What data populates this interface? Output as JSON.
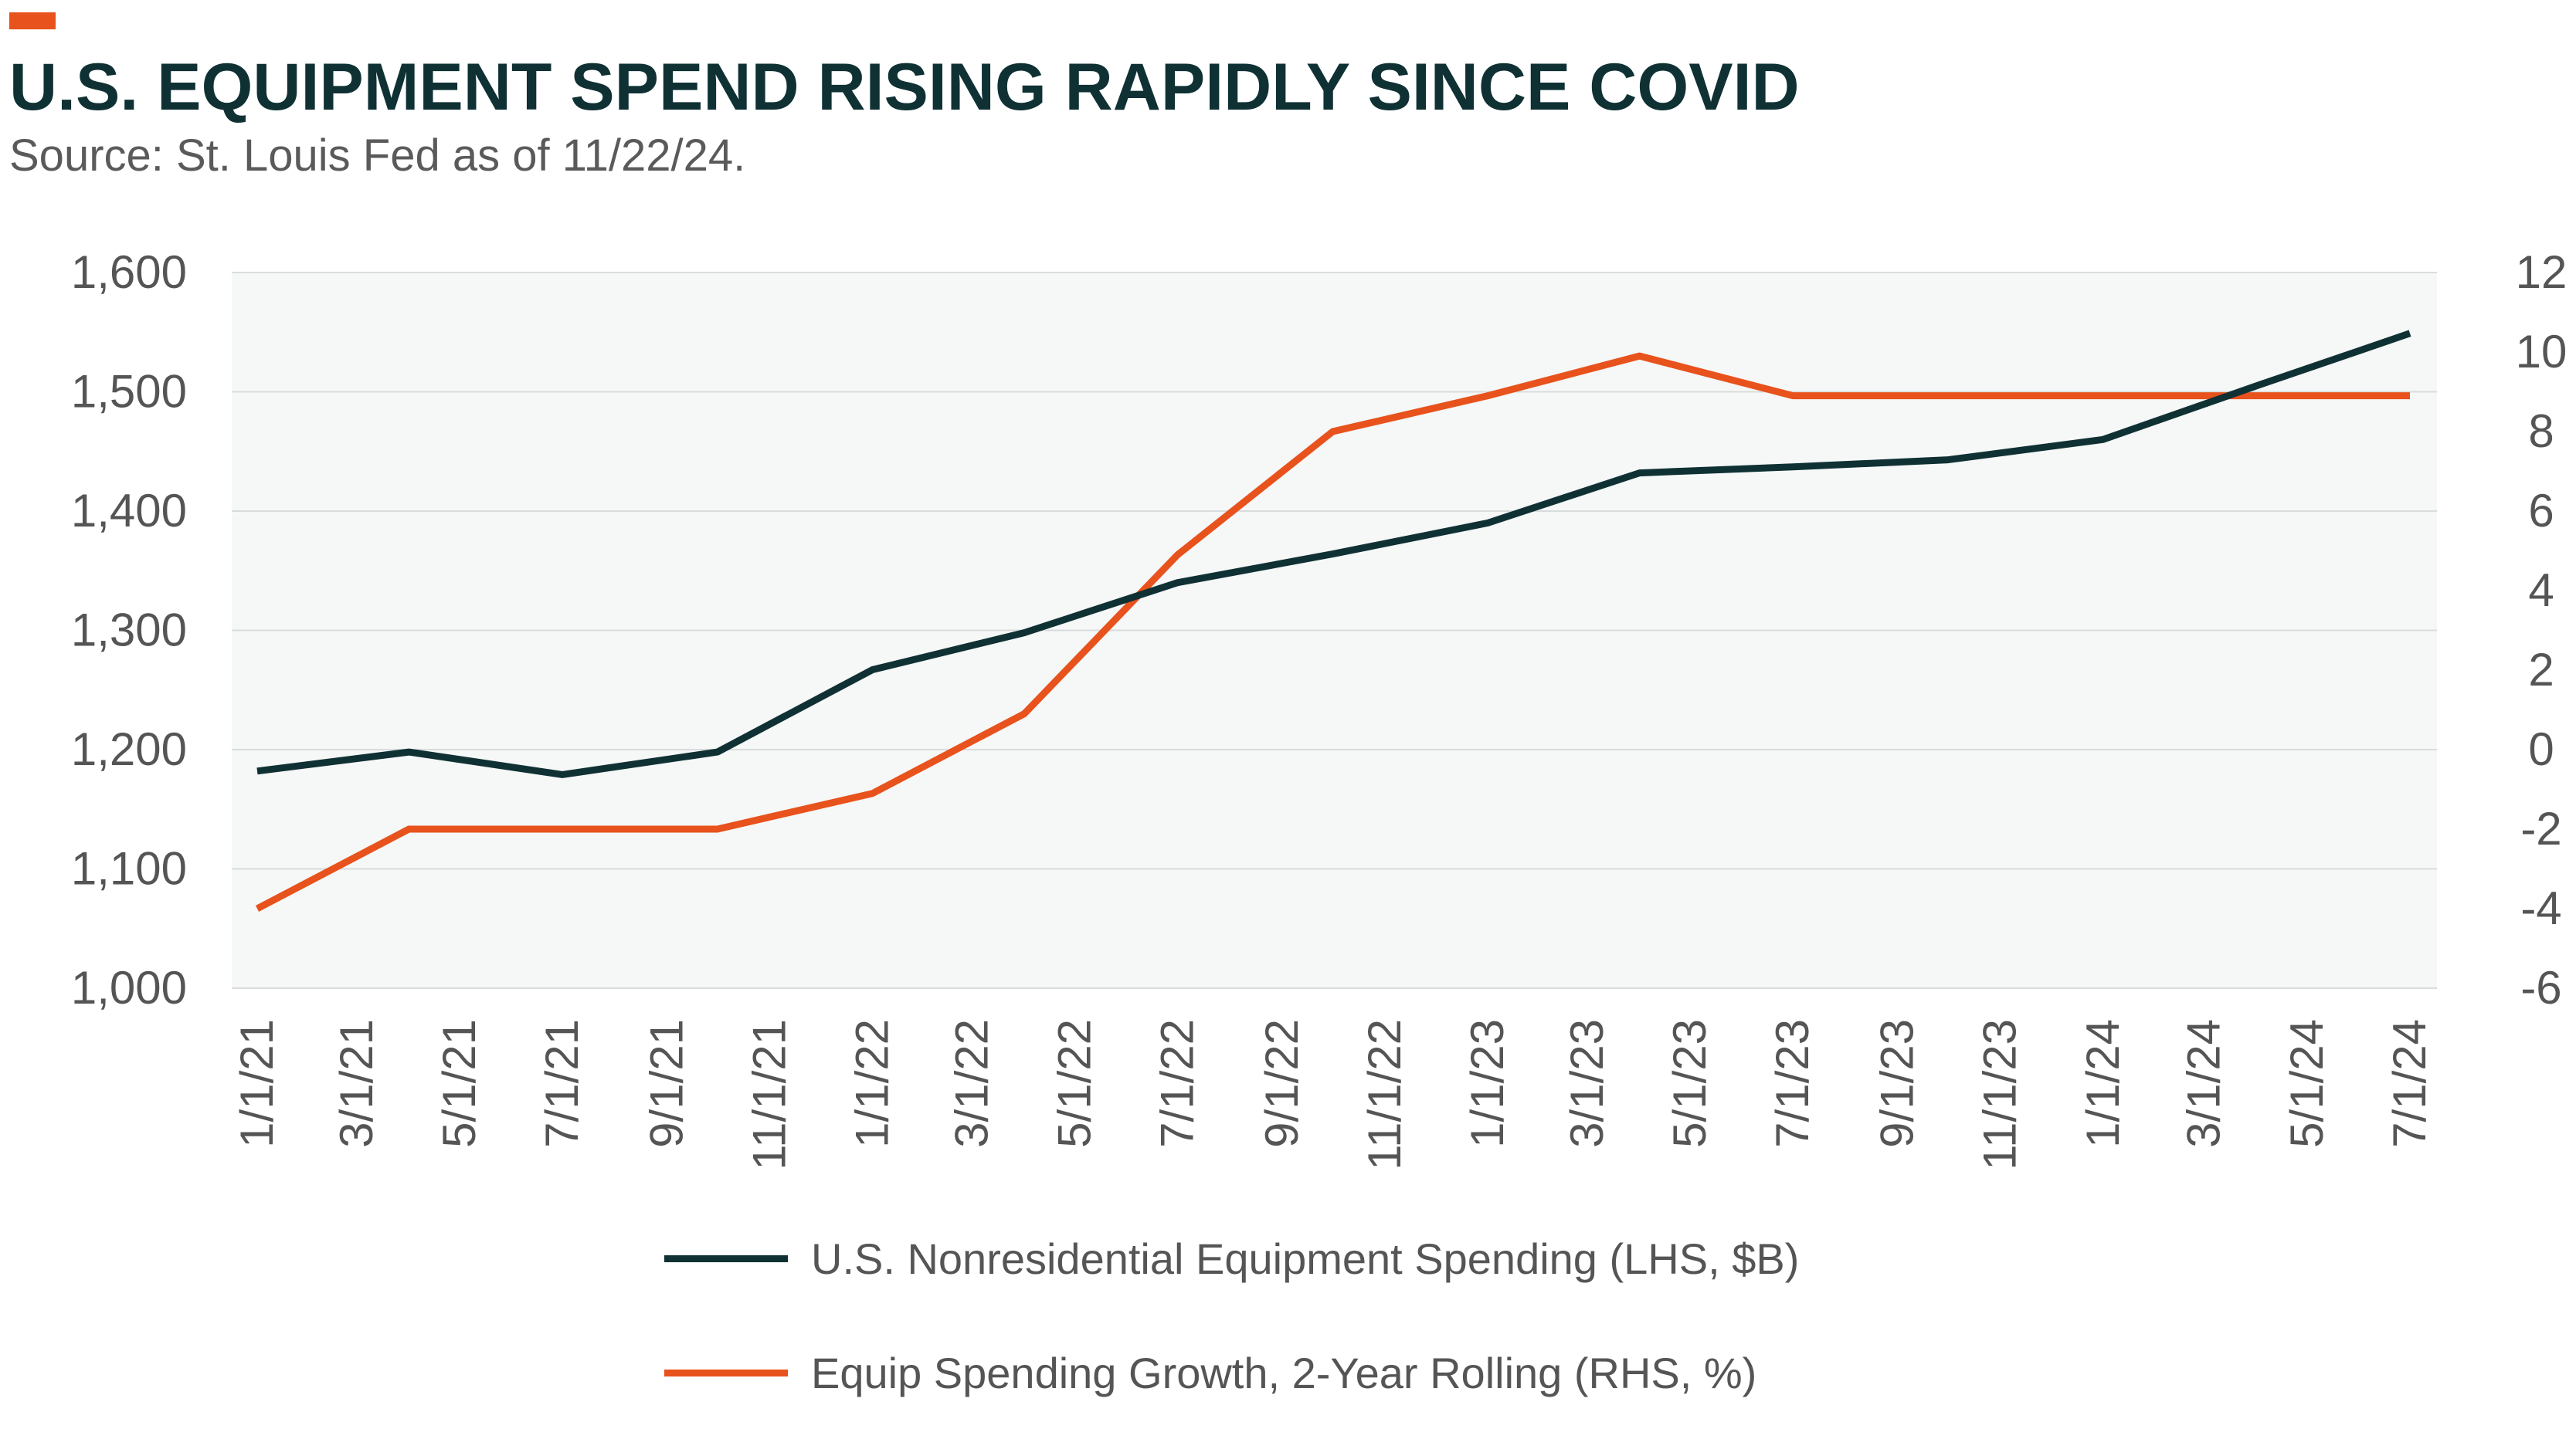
{
  "header": {
    "title": "U.S. EQUIPMENT SPEND RISING RAPIDLY SINCE COVID",
    "source": "Source: St. Louis Fed as of 11/22/24.",
    "accent_color": "#e8521c"
  },
  "chart_data": {
    "type": "line",
    "title": "U.S. EQUIPMENT SPEND RISING RAPIDLY SINCE COVID",
    "subtitle": "Source: St. Louis Fed as of 11/22/24.",
    "categories": [
      "1/1/21",
      "3/1/21",
      "5/1/21",
      "7/1/21",
      "9/1/21",
      "11/1/21",
      "1/1/22",
      "3/1/22",
      "5/1/22",
      "7/1/22",
      "9/1/22",
      "11/1/22",
      "1/1/23",
      "3/1/23",
      "5/1/23",
      "7/1/23",
      "9/1/23",
      "11/1/23",
      "1/1/24",
      "3/1/24",
      "5/1/24",
      "7/1/24"
    ],
    "left_axis": {
      "ylim": [
        1000,
        1600
      ],
      "ticks": [
        "1,000",
        "1,100",
        "1,200",
        "1,300",
        "1,400",
        "1,500",
        "1,600"
      ],
      "tick_values": [
        1000,
        1100,
        1200,
        1300,
        1400,
        1500,
        1600
      ]
    },
    "right_axis": {
      "ylim": [
        -6,
        12
      ],
      "ticks": [
        "-6",
        "-4",
        "-2",
        "0",
        "2",
        "4",
        "6",
        "8",
        "10",
        "12"
      ],
      "tick_values": [
        -6,
        -4,
        -2,
        0,
        2,
        4,
        6,
        8,
        10,
        12
      ]
    },
    "series": [
      {
        "name": "U.S. Nonresidential Equipment Spending (LHS, $B)",
        "axis": "left",
        "color": "#0f3134",
        "points": [
          {
            "x": "1/1/21",
            "y": 1182
          },
          {
            "x": "4/1/21",
            "y": 1198
          },
          {
            "x": "7/1/21",
            "y": 1179
          },
          {
            "x": "10/1/21",
            "y": 1198
          },
          {
            "x": "1/1/22",
            "y": 1267
          },
          {
            "x": "4/1/22",
            "y": 1298
          },
          {
            "x": "7/1/22",
            "y": 1340
          },
          {
            "x": "10/1/22",
            "y": 1364
          },
          {
            "x": "1/1/23",
            "y": 1390
          },
          {
            "x": "4/1/23",
            "y": 1432
          },
          {
            "x": "7/1/23",
            "y": 1437
          },
          {
            "x": "10/1/23",
            "y": 1443
          },
          {
            "x": "1/1/24",
            "y": 1460
          },
          {
            "x": "4/1/24",
            "y": 1505
          },
          {
            "x": "7/1/24",
            "y": 1549
          }
        ]
      },
      {
        "name": "Equip Spending Growth, 2-Year Rolling (RHS, %)",
        "axis": "right",
        "color": "#e8521c",
        "points": [
          {
            "x": "1/1/21",
            "y": -4
          },
          {
            "x": "4/1/21",
            "y": -2
          },
          {
            "x": "7/1/21",
            "y": -2
          },
          {
            "x": "10/1/21",
            "y": -2
          },
          {
            "x": "1/1/22",
            "y": -1.1
          },
          {
            "x": "4/1/22",
            "y": 0.9
          },
          {
            "x": "7/1/22",
            "y": 4.9
          },
          {
            "x": "10/1/22",
            "y": 8
          },
          {
            "x": "1/1/23",
            "y": 8.9
          },
          {
            "x": "4/1/23",
            "y": 9.9
          },
          {
            "x": "7/1/23",
            "y": 8.9
          },
          {
            "x": "10/1/23",
            "y": 8.9
          },
          {
            "x": "1/1/24",
            "y": 8.9
          },
          {
            "x": "4/1/24",
            "y": 8.9
          },
          {
            "x": "7/1/24",
            "y": 8.9
          }
        ]
      }
    ],
    "grid": true,
    "legend_position": "bottom"
  }
}
